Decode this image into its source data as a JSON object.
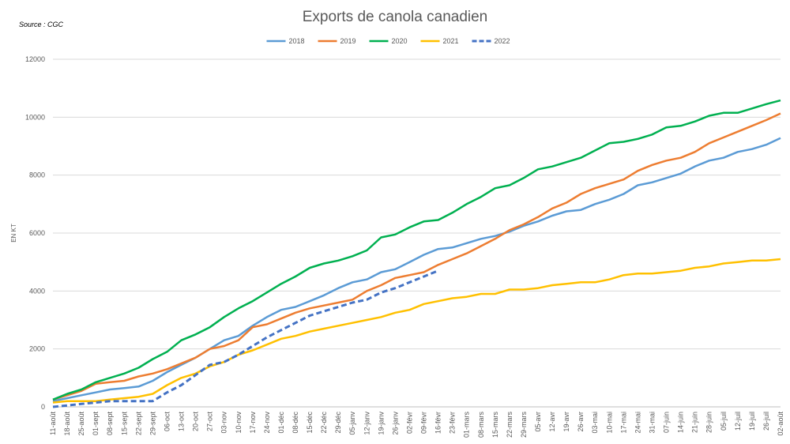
{
  "chart_data": {
    "type": "line",
    "title": "Exports de canola canadien",
    "source": "Source : CGC",
    "y_label": "EN KT",
    "categories": [
      "11-août",
      "18-août",
      "25-août",
      "01-sept",
      "08-sept",
      "15-sept",
      "22-sept",
      "29-sept",
      "06-oct",
      "13-oct",
      "20-oct",
      "27-oct",
      "03-nov",
      "10-nov",
      "17-nov",
      "24-nov",
      "01-déc",
      "08-déc",
      "15-déc",
      "22-déc",
      "29-déc",
      "05-janv",
      "12-janv",
      "19-janv",
      "26-janv",
      "02-févr",
      "09-févr",
      "16-févr",
      "23-févr",
      "01-mars",
      "08-mars",
      "15-mars",
      "22-mars",
      "29-mars",
      "05-avr",
      "12-avr",
      "19-avr",
      "26-avr",
      "03-mai",
      "10-mai",
      "17-mai",
      "24-mai",
      "31-mai",
      "07-juin",
      "14-juin",
      "21-juin",
      "28-juin",
      "05-juil",
      "12-juil",
      "19-juil",
      "26-juil",
      "02-août"
    ],
    "series": [
      {
        "name": "2018",
        "color": "#5b9bd5",
        "values": [
          200,
          300,
          400,
          500,
          600,
          650,
          700,
          900,
          1200,
          1450,
          1700,
          2000,
          2300,
          2450,
          2800,
          3100,
          3350,
          3450,
          3650,
          3850,
          4100,
          4300,
          4400,
          4650,
          4750,
          5000,
          5250,
          5450,
          5500,
          5650,
          5800,
          5900,
          6050,
          6250,
          6400,
          6600,
          6750,
          6800,
          7000,
          7150,
          7350,
          7650,
          7750,
          7900,
          8050,
          8300,
          8500,
          8600,
          8800,
          8900,
          9050,
          9280
        ]
      },
      {
        "name": "2019",
        "color": "#ed7d31",
        "values": [
          250,
          400,
          550,
          800,
          850,
          900,
          1050,
          1150,
          1300,
          1500,
          1700,
          2000,
          2100,
          2300,
          2750,
          2850,
          3050,
          3250,
          3400,
          3500,
          3600,
          3700,
          4000,
          4200,
          4450,
          4550,
          4650,
          4900,
          5100,
          5300,
          5550,
          5800,
          6100,
          6300,
          6550,
          6850,
          7050,
          7350,
          7550,
          7700,
          7850,
          8150,
          8350,
          8500,
          8600,
          8800,
          9100,
          9300,
          9500,
          9700,
          9900,
          10130
        ]
      },
      {
        "name": "2020",
        "color": "#00b050",
        "values": [
          250,
          450,
          600,
          850,
          1000,
          1150,
          1350,
          1650,
          1900,
          2300,
          2500,
          2750,
          3100,
          3400,
          3650,
          3950,
          4250,
          4500,
          4800,
          4950,
          5050,
          5200,
          5400,
          5850,
          5950,
          6200,
          6400,
          6450,
          6700,
          7000,
          7250,
          7550,
          7650,
          7900,
          8200,
          8300,
          8450,
          8600,
          8850,
          9100,
          9150,
          9250,
          9400,
          9650,
          9700,
          9850,
          10050,
          10150,
          10150,
          10300,
          10450,
          10580
        ]
      },
      {
        "name": "2021",
        "color": "#ffc000",
        "values": [
          150,
          200,
          200,
          200,
          250,
          300,
          350,
          450,
          750,
          1000,
          1150,
          1400,
          1550,
          1800,
          1950,
          2150,
          2350,
          2450,
          2600,
          2700,
          2800,
          2900,
          3000,
          3100,
          3250,
          3350,
          3550,
          3650,
          3750,
          3800,
          3900,
          3900,
          4050,
          4050,
          4100,
          4200,
          4250,
          4300,
          4300,
          4400,
          4550,
          4600,
          4600,
          4650,
          4700,
          4800,
          4850,
          4950,
          5000,
          5050,
          5050,
          5100
        ]
      },
      {
        "name": "2022",
        "color": "#4472c4",
        "dashed": true,
        "values": [
          0,
          50,
          100,
          150,
          200,
          200,
          200,
          200,
          500,
          750,
          1100,
          1450,
          1550,
          1800,
          2100,
          2400,
          2650,
          2900,
          3150,
          3300,
          3450,
          3600,
          3700,
          3950,
          4100,
          4300,
          4500,
          4700,
          null,
          null,
          null,
          null,
          null,
          null,
          null,
          null,
          null,
          null,
          null,
          null,
          null,
          null,
          null,
          null,
          null,
          null,
          null,
          null,
          null,
          null,
          null,
          null
        ]
      }
    ],
    "ylim": [
      0,
      12000
    ],
    "yticks": [
      0,
      2000,
      4000,
      6000,
      8000,
      10000,
      12000
    ],
    "grid": true,
    "legend": "top"
  }
}
